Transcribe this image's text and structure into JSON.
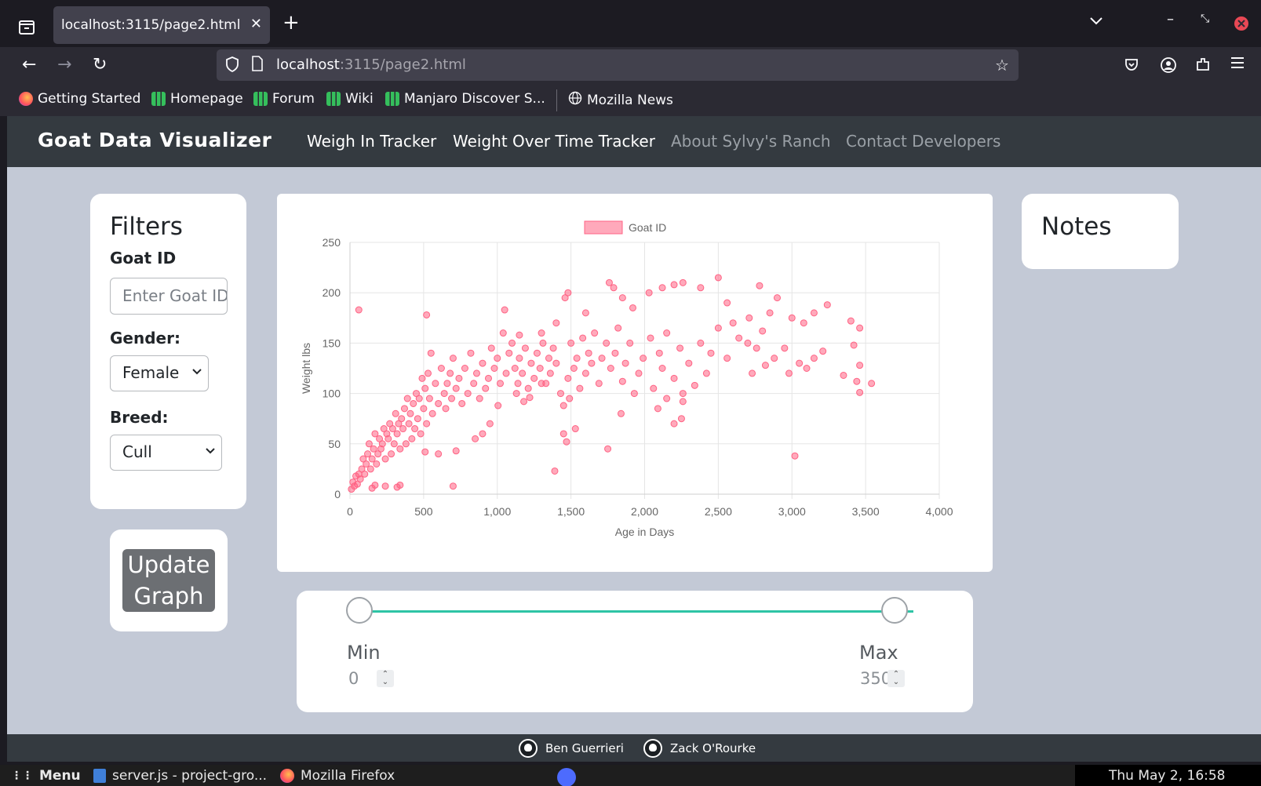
{
  "browser": {
    "tab_title": "localhost:3115/page2.html",
    "url_host": "localhost",
    "url_rest": ":3115/page2.html",
    "bookmarks": [
      {
        "label": "Getting Started",
        "color": "#ff7a18"
      },
      {
        "label": "Homepage",
        "color": "#35bf5c"
      },
      {
        "label": "Forum",
        "color": "#35bf5c"
      },
      {
        "label": "Wiki",
        "color": "#35bf5c"
      },
      {
        "label": "Manjaro Discover S...",
        "color": "#35bf5c"
      },
      {
        "label": "Mozilla News",
        "color": "#fbfbfe"
      }
    ]
  },
  "site": {
    "brand": "Goat Data Visualizer",
    "links": [
      "Weigh In Tracker",
      "Weight Over Time Tracker",
      "About Sylvy's Ranch",
      "Contact Developers"
    ]
  },
  "filters": {
    "title": "Filters",
    "goat_id_label": "Goat ID",
    "goat_id_placeholder": "Enter Goat ID",
    "gender_label": "Gender:",
    "gender_value": "Female",
    "breed_label": "Breed:",
    "breed_value": "Cull"
  },
  "update_button": "Update Graph",
  "notes": {
    "title": "Notes"
  },
  "range": {
    "min_label": "Min",
    "max_label": "Max",
    "min_value": "0",
    "max_value": "350"
  },
  "footer": {
    "contributors": [
      "Ben Guerrieri",
      "Zack O'Rourke"
    ]
  },
  "taskbar": {
    "menu": "Menu",
    "items": [
      "server.js - project-gro...",
      "Mozilla Firefox"
    ],
    "clock": "Thu May  2, 16:58"
  },
  "colors": {
    "point_fill": "rgba(255,99,132,0.55)",
    "point_stroke": "#ff6384",
    "accent": "#2ec4a5"
  },
  "chart_data": {
    "type": "scatter",
    "title": "",
    "legend": "Goat ID",
    "legend_position": "top",
    "xlabel": "Age in Days",
    "ylabel": "Weight lbs",
    "xlim": [
      0,
      4000
    ],
    "ylim": [
      0,
      250
    ],
    "x_ticks": [
      "0",
      "500",
      "1,000",
      "1,500",
      "2,000",
      "2,500",
      "3,000",
      "3,500",
      "4,000"
    ],
    "y_ticks": [
      "0",
      "50",
      "100",
      "150",
      "200",
      "250"
    ],
    "grid": true,
    "series": [
      {
        "name": "Goat ID",
        "points": [
          [
            60,
            183
          ],
          [
            520,
            178
          ],
          [
            1050,
            183
          ],
          [
            1140,
            110
          ],
          [
            1300,
            110
          ],
          [
            1460,
            195
          ],
          [
            1480,
            200
          ],
          [
            1600,
            180
          ],
          [
            1760,
            210
          ],
          [
            1790,
            205
          ],
          [
            1850,
            195
          ],
          [
            1920,
            185
          ],
          [
            2030,
            200
          ],
          [
            2120,
            205
          ],
          [
            2200,
            208
          ],
          [
            2260,
            210
          ],
          [
            2380,
            205
          ],
          [
            2500,
            215
          ],
          [
            2560,
            190
          ],
          [
            2780,
            207
          ],
          [
            2710,
            175
          ],
          [
            2700,
            150
          ],
          [
            2850,
            180
          ],
          [
            2900,
            195
          ],
          [
            3000,
            175
          ],
          [
            3080,
            170
          ],
          [
            3150,
            180
          ],
          [
            3240,
            188
          ],
          [
            3400,
            172
          ],
          [
            3460,
            165
          ],
          [
            3420,
            148
          ],
          [
            3350,
            118
          ],
          [
            3460,
            128
          ],
          [
            3440,
            112
          ],
          [
            3460,
            101
          ],
          [
            3540,
            110
          ],
          [
            3210,
            142
          ],
          [
            3150,
            135
          ],
          [
            3100,
            125
          ],
          [
            3050,
            130
          ],
          [
            2980,
            120
          ],
          [
            2950,
            145
          ],
          [
            2880,
            135
          ],
          [
            2820,
            128
          ],
          [
            2800,
            162
          ],
          [
            2760,
            145
          ],
          [
            2730,
            120
          ],
          [
            2640,
            155
          ],
          [
            2600,
            170
          ],
          [
            2560,
            135
          ],
          [
            2500,
            165
          ],
          [
            2450,
            140
          ],
          [
            2420,
            120
          ],
          [
            2380,
            150
          ],
          [
            2340,
            108
          ],
          [
            2300,
            130
          ],
          [
            2260,
            100
          ],
          [
            2240,
            145
          ],
          [
            2200,
            115
          ],
          [
            2150,
            160
          ],
          [
            2120,
            125
          ],
          [
            2100,
            140
          ],
          [
            2060,
            105
          ],
          [
            2040,
            155
          ],
          [
            1990,
            135
          ],
          [
            1960,
            120
          ],
          [
            1930,
            100
          ],
          [
            1900,
            150
          ],
          [
            1870,
            130
          ],
          [
            1850,
            112
          ],
          [
            1820,
            165
          ],
          [
            1800,
            140
          ],
          [
            1770,
            125
          ],
          [
            1740,
            150
          ],
          [
            1710,
            135
          ],
          [
            1690,
            110
          ],
          [
            1660,
            160
          ],
          [
            1640,
            130
          ],
          [
            1620,
            140
          ],
          [
            1600,
            120
          ],
          [
            1580,
            155
          ],
          [
            1560,
            105
          ],
          [
            1540,
            135
          ],
          [
            1520,
            125
          ],
          [
            1500,
            150
          ],
          [
            1490,
            95
          ],
          [
            1480,
            115
          ],
          [
            1450,
            88
          ],
          [
            1430,
            100
          ],
          [
            1400,
            130
          ],
          [
            1380,
            145
          ],
          [
            1360,
            120
          ],
          [
            1350,
            135
          ],
          [
            1330,
            110
          ],
          [
            1310,
            150
          ],
          [
            1290,
            125
          ],
          [
            1270,
            140
          ],
          [
            1250,
            115
          ],
          [
            1230,
            130
          ],
          [
            1210,
            105
          ],
          [
            1190,
            145
          ],
          [
            1170,
            120
          ],
          [
            1150,
            135
          ],
          [
            1130,
            100
          ],
          [
            1120,
            125
          ],
          [
            1100,
            150
          ],
          [
            1080,
            140
          ],
          [
            1060,
            120
          ],
          [
            1040,
            160
          ],
          [
            1020,
            110
          ],
          [
            1000,
            135
          ],
          [
            980,
            125
          ],
          [
            960,
            145
          ],
          [
            940,
            115
          ],
          [
            920,
            105
          ],
          [
            900,
            130
          ],
          [
            880,
            95
          ],
          [
            860,
            120
          ],
          [
            840,
            110
          ],
          [
            820,
            140
          ],
          [
            800,
            100
          ],
          [
            780,
            125
          ],
          [
            760,
            90
          ],
          [
            740,
            115
          ],
          [
            720,
            105
          ],
          [
            700,
            135
          ],
          [
            690,
            95
          ],
          [
            680,
            120
          ],
          [
            660,
            110
          ],
          [
            650,
            85
          ],
          [
            640,
            100
          ],
          [
            620,
            125
          ],
          [
            600,
            90
          ],
          [
            580,
            110
          ],
          [
            560,
            80
          ],
          [
            550,
            140
          ],
          [
            540,
            95
          ],
          [
            530,
            120
          ],
          [
            520,
            70
          ],
          [
            510,
            105
          ],
          [
            500,
            85
          ],
          [
            490,
            115
          ],
          [
            480,
            60
          ],
          [
            470,
            95
          ],
          [
            460,
            75
          ],
          [
            450,
            100
          ],
          [
            440,
            65
          ],
          [
            430,
            90
          ],
          [
            420,
            55
          ],
          [
            410,
            80
          ],
          [
            400,
            70
          ],
          [
            390,
            95
          ],
          [
            380,
            50
          ],
          [
            370,
            85
          ],
          [
            360,
            65
          ],
          [
            350,
            75
          ],
          [
            340,
            45
          ],
          [
            330,
            70
          ],
          [
            320,
            60
          ],
          [
            310,
            80
          ],
          [
            300,
            50
          ],
          [
            290,
            65
          ],
          [
            280,
            40
          ],
          [
            270,
            70
          ],
          [
            260,
            55
          ],
          [
            250,
            60
          ],
          [
            240,
            35
          ],
          [
            230,
            65
          ],
          [
            220,
            50
          ],
          [
            210,
            45
          ],
          [
            200,
            55
          ],
          [
            190,
            40
          ],
          [
            180,
            30
          ],
          [
            170,
            60
          ],
          [
            160,
            45
          ],
          [
            150,
            35
          ],
          [
            140,
            25
          ],
          [
            130,
            50
          ],
          [
            120,
            40
          ],
          [
            110,
            30
          ],
          [
            100,
            20
          ],
          [
            90,
            35
          ],
          [
            80,
            25
          ],
          [
            70,
            15
          ],
          [
            60,
            20
          ],
          [
            50,
            10
          ],
          [
            40,
            18
          ],
          [
            30,
            8
          ],
          [
            20,
            12
          ],
          [
            10,
            5
          ],
          [
            3020,
            38
          ],
          [
            1750,
            45
          ],
          [
            1390,
            23
          ],
          [
            1450,
            60
          ],
          [
            1470,
            52
          ],
          [
            2200,
            70
          ],
          [
            2250,
            75
          ],
          [
            2090,
            85
          ],
          [
            1840,
            80
          ],
          [
            1530,
            65
          ],
          [
            700,
            8
          ],
          [
            340,
            9
          ],
          [
            320,
            7
          ],
          [
            240,
            8
          ],
          [
            170,
            9
          ],
          [
            150,
            6
          ],
          [
            720,
            43
          ],
          [
            600,
            40
          ],
          [
            510,
            42
          ],
          [
            850,
            55
          ],
          [
            900,
            60
          ],
          [
            950,
            70
          ],
          [
            1005,
            88
          ],
          [
            1180,
            92
          ],
          [
            1220,
            96
          ],
          [
            1150,
            158
          ],
          [
            1300,
            160
          ],
          [
            1400,
            170
          ],
          [
            2150,
            95
          ],
          [
            2260,
            92
          ]
        ]
      }
    ]
  }
}
